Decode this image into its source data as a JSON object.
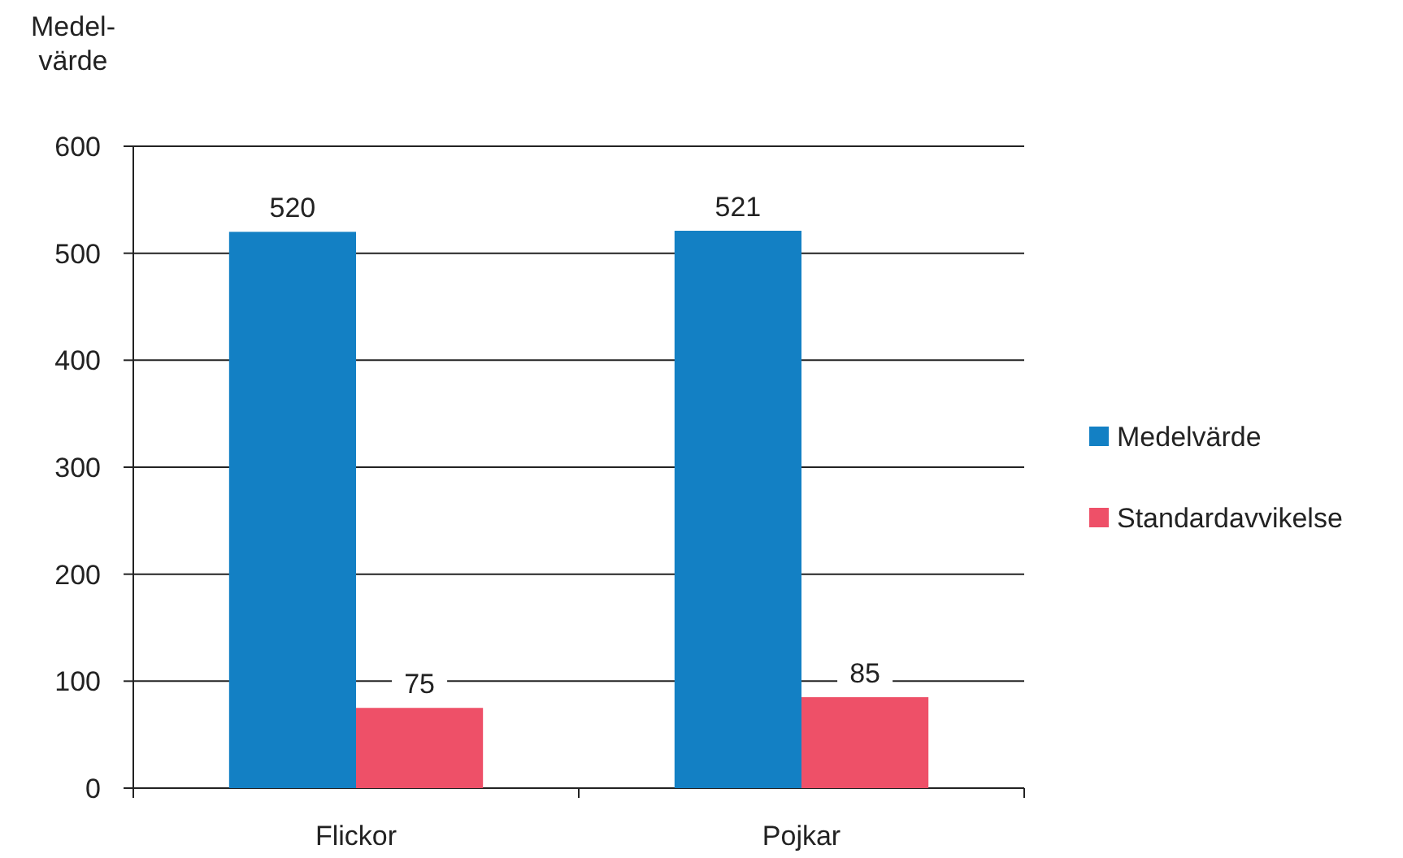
{
  "chart_data": {
    "type": "bar",
    "ylabel": "Medel-\nvärde",
    "categories": [
      "Flickor",
      "Pojkar"
    ],
    "series": [
      {
        "name": "Medelvärde",
        "color": "#1380c4",
        "values": [
          520,
          521
        ]
      },
      {
        "name": "Standardavvikelse",
        "color": "#ee5068",
        "values": [
          75,
          85
        ]
      }
    ],
    "ylim": [
      0,
      600
    ],
    "yticks": [
      0,
      100,
      200,
      300,
      400,
      500,
      600
    ],
    "grid": "y",
    "legend": "right",
    "data_labels": true
  }
}
